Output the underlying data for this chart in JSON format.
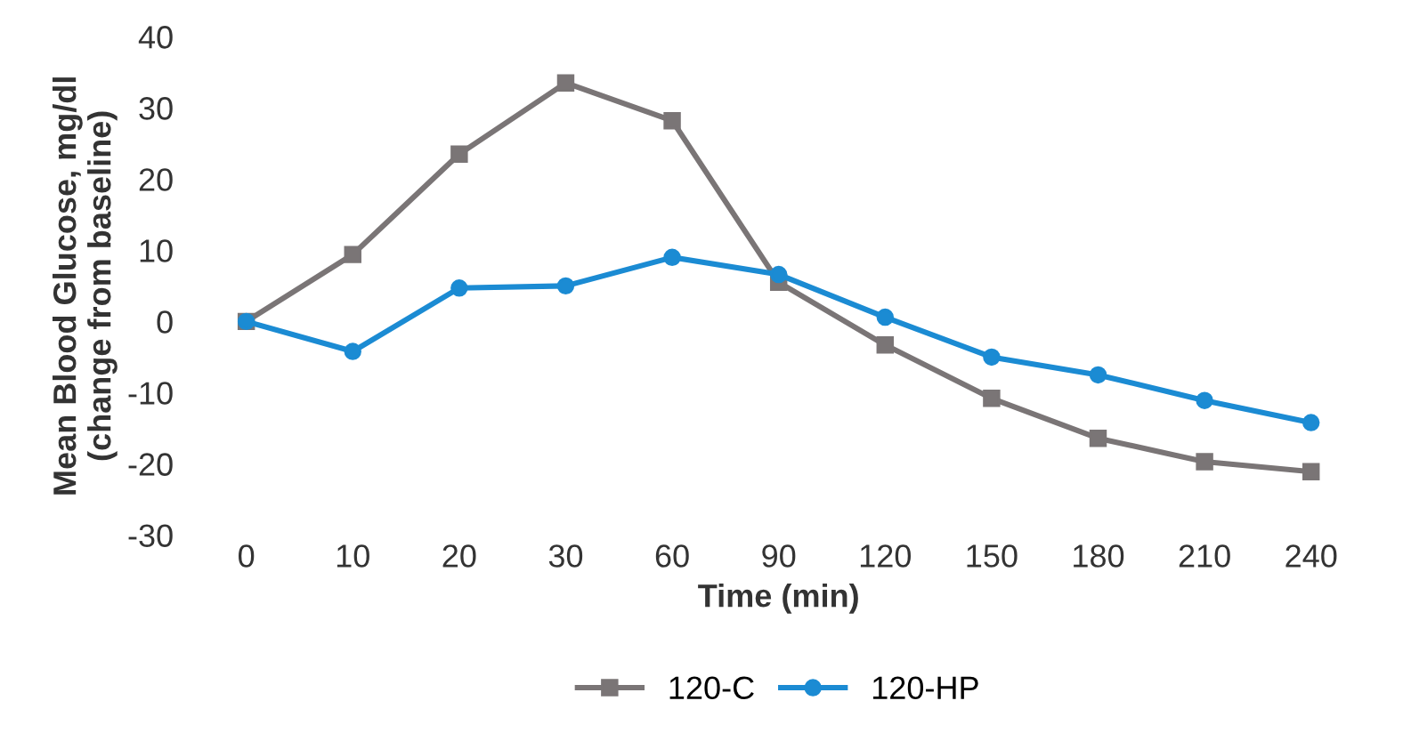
{
  "chart_data": {
    "type": "line",
    "xlabel": "Time (min)",
    "ylabel": "Mean Blood Glucose, mg/dl\n(change from baseline)",
    "categories": [
      "0",
      "10",
      "20",
      "30",
      "60",
      "90",
      "120",
      "150",
      "180",
      "210",
      "240"
    ],
    "series": [
      {
        "name": "120-C",
        "color": "#7a7576",
        "marker": "square",
        "values": [
          0,
          9.4,
          23.5,
          33.5,
          28.2,
          5.5,
          -3.3,
          -10.8,
          -16.4,
          -19.7,
          -21.1
        ]
      },
      {
        "name": "120-HP",
        "color": "#1b8bd3",
        "marker": "circle",
        "values": [
          0,
          -4.2,
          4.7,
          5,
          9,
          6.6,
          0.6,
          -5,
          -7.5,
          -11.1,
          -14.2
        ]
      }
    ],
    "ylim": [
      -30,
      40
    ],
    "yticks": [
      -30,
      -20,
      -10,
      0,
      10,
      20,
      30,
      40
    ],
    "grid": false,
    "legend": "bottom",
    "line_style": "solid"
  }
}
